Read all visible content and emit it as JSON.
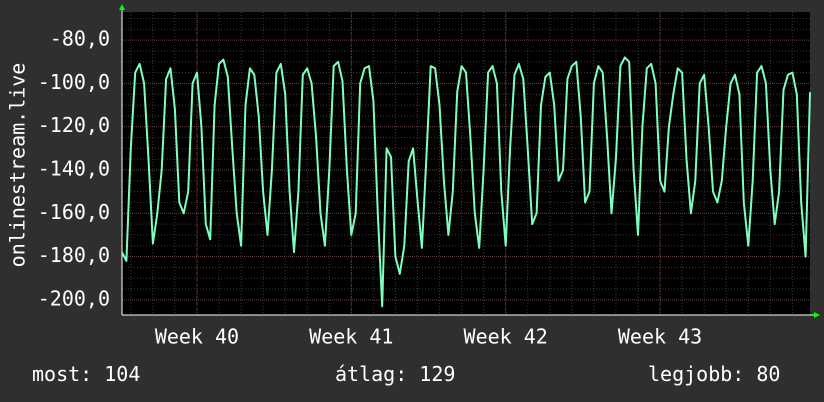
{
  "colors": {
    "background": "#2f2f2f",
    "plot_background": "#000000",
    "line": "#7fffbf",
    "grid_major": "#6a4040",
    "grid_minor": "#3a3a3a",
    "axis": "#ffffff",
    "arrow": "#00ff00"
  },
  "stats": {
    "current": "most: 104",
    "average": "átlag: 129",
    "best": "legjobb: 80"
  },
  "chart_data": {
    "type": "line",
    "ylabel": "onlinestream.live",
    "ylim": [
      -207,
      -67
    ],
    "yticks": [
      -80,
      -100,
      -120,
      -140,
      -160,
      -180,
      -200
    ],
    "ytick_labels": [
      "-80,0",
      "-100,0",
      "-120,0",
      "-140,0",
      "-160,0",
      "-180,0",
      "-200,0"
    ],
    "xticks": [
      {
        "label": "Week 40",
        "x": 1
      },
      {
        "label": "Week 41",
        "x": 8
      },
      {
        "label": "Week 42",
        "x": 15
      },
      {
        "label": "Week 43",
        "x": 22
      }
    ],
    "xlim": [
      -2.4,
      28.8
    ],
    "grid": true,
    "series": [
      {
        "x": [
          -2.4,
          -2.2,
          -2.0,
          -1.8,
          -1.6,
          -1.4,
          -1.2,
          -1.0,
          -0.8,
          -0.6,
          -0.4,
          -0.2,
          0.0,
          0.2,
          0.4,
          0.6,
          0.8,
          1.0,
          1.2,
          1.4,
          1.6,
          1.8,
          2.0,
          2.2,
          2.4,
          2.6,
          2.8,
          3.0,
          3.2,
          3.4,
          3.6,
          3.8,
          4.0,
          4.2,
          4.4,
          4.6,
          4.8,
          5.0,
          5.2,
          5.4,
          5.6,
          5.8,
          6.0,
          6.2,
          6.4,
          6.6,
          6.8,
          7.0,
          7.2,
          7.4,
          7.6,
          7.8,
          8.0,
          8.2,
          8.4,
          8.6,
          8.8,
          9.0,
          9.2,
          9.4,
          9.6,
          9.8,
          10.0,
          10.2,
          10.4,
          10.6,
          10.8,
          11.0,
          11.2,
          11.4,
          11.6,
          11.8,
          12.0,
          12.2,
          12.4,
          12.6,
          12.8,
          13.0,
          13.2,
          13.4,
          13.6,
          13.8,
          14.0,
          14.2,
          14.4,
          14.6,
          14.8,
          15.0,
          15.2,
          15.4,
          15.6,
          15.8,
          16.0,
          16.2,
          16.4,
          16.6,
          16.8,
          17.0,
          17.2,
          17.4,
          17.6,
          17.8,
          18.0,
          18.2,
          18.4,
          18.6,
          18.8,
          19.0,
          19.2,
          19.4,
          19.6,
          19.8,
          20.0,
          20.2,
          20.4,
          20.6,
          20.8,
          21.0,
          21.2,
          21.4,
          21.6,
          21.8,
          22.0,
          22.2,
          22.4,
          22.6,
          22.8,
          23.0,
          23.2,
          23.4,
          23.6,
          23.8,
          24.0,
          24.2,
          24.4,
          24.6,
          24.8,
          25.0,
          25.2,
          25.4,
          25.6,
          25.8,
          26.0,
          26.2,
          26.4,
          26.6,
          26.8,
          27.0,
          27.2,
          27.4,
          27.6,
          27.8,
          28.0,
          28.2,
          28.4,
          28.6,
          28.8
        ],
        "values": [
          -178,
          -182,
          -130,
          -95,
          -91,
          -100,
          -135,
          -174,
          -160,
          -140,
          -98,
          -93,
          -112,
          -155,
          -160,
          -150,
          -100,
          -95,
          -120,
          -165,
          -172,
          -110,
          -91,
          -89,
          -97,
          -130,
          -160,
          -175,
          -110,
          -93,
          -96,
          -115,
          -150,
          -170,
          -140,
          -95,
          -91,
          -105,
          -150,
          -178,
          -150,
          -96,
          -93,
          -100,
          -125,
          -160,
          -175,
          -140,
          -92,
          -90,
          -99,
          -140,
          -170,
          -160,
          -100,
          -93,
          -92,
          -108,
          -160,
          -203,
          -130,
          -134,
          -180,
          -188,
          -175,
          -136,
          -130,
          -154,
          -176,
          -135,
          -92,
          -93,
          -110,
          -145,
          -170,
          -150,
          -104,
          -92,
          -95,
          -125,
          -160,
          -176,
          -140,
          -95,
          -92,
          -100,
          -150,
          -175,
          -130,
          -96,
          -91,
          -98,
          -130,
          -165,
          -160,
          -110,
          -97,
          -95,
          -110,
          -145,
          -140,
          -98,
          -92,
          -90,
          -115,
          -155,
          -150,
          -100,
          -92,
          -95,
          -125,
          -160,
          -135,
          -92,
          -88,
          -90,
          -140,
          -170,
          -120,
          -93,
          -91,
          -100,
          -145,
          -150,
          -120,
          -105,
          -93,
          -95,
          -135,
          -160,
          -145,
          -100,
          -96,
          -120,
          -150,
          -155,
          -145,
          -120,
          -100,
          -96,
          -105,
          -155,
          -175,
          -145,
          -95,
          -92,
          -100,
          -140,
          -165,
          -150,
          -103,
          -96,
          -95,
          -105,
          -155,
          -180,
          -104
        ]
      }
    ]
  }
}
